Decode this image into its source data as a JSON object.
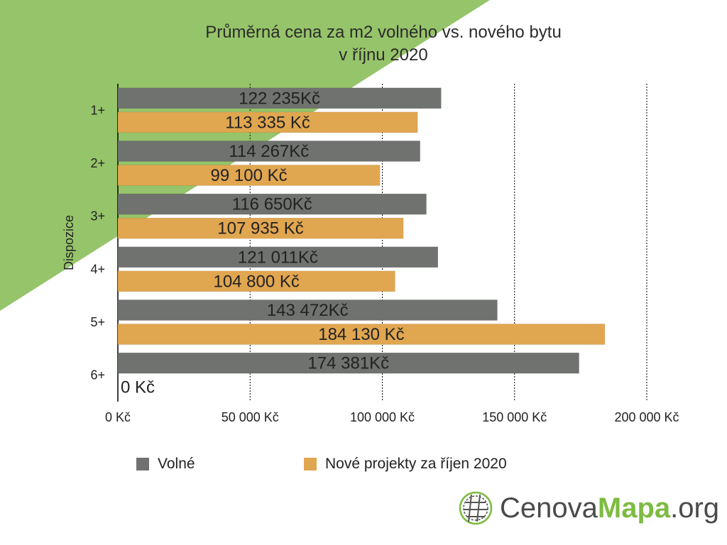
{
  "title_line1": "Průměrná cena za m2 volného vs. nového bytu",
  "title_line2": "v říjnu 2020",
  "colors": {
    "background_accent": "#96c46a",
    "volne": "#6f726f",
    "nove": "#e0a650",
    "grid": "#000000"
  },
  "legend": {
    "volne": "Volné",
    "nove": "Nové projekty za říjen 2020"
  },
  "logo": {
    "part1": "Cenova",
    "part2": "Mapa",
    "part3": ".org",
    "icon": "globe-grid-icon"
  },
  "chart_data": {
    "type": "bar",
    "orientation": "horizontal",
    "title": "Průměrná cena za m2 volného vs. nového bytu v říjnu 2020",
    "ylabel": "Dispozice",
    "xlabel": "",
    "categories": [
      "1+",
      "2+",
      "3+",
      "4+",
      "5+",
      "6+"
    ],
    "xlim": [
      0,
      200000
    ],
    "x_ticks": [
      0,
      50000,
      100000,
      150000,
      200000
    ],
    "x_tick_labels": [
      "0 Kč",
      "50 000 Kč",
      "100 000 Kč",
      "150 000 Kč",
      "200 000 Kč"
    ],
    "grid": "vertical dashed",
    "legend_position": "bottom",
    "series": [
      {
        "name": "Volné",
        "values": [
          122235,
          114267,
          116650,
          121011,
          143472,
          174381
        ],
        "labels": [
          "122 235Kč",
          "114 267Kč",
          "116 650Kč",
          "121 011Kč",
          "143 472Kč",
          "174 381Kč"
        ]
      },
      {
        "name": "Nové projekty za říjen 2020",
        "values": [
          113335,
          99100,
          107935,
          104800,
          184130,
          0
        ],
        "labels": [
          "113 335 Kč",
          "99 100 Kč",
          "107 935 Kč",
          "104 800 Kč",
          "184 130 Kč",
          "0 Kč"
        ]
      }
    ]
  }
}
